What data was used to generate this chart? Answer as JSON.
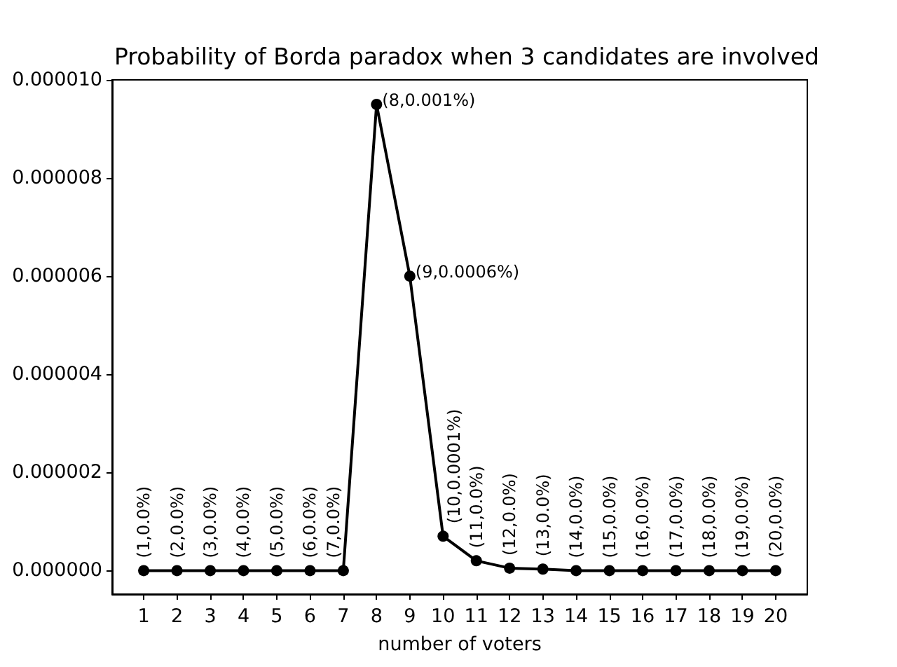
{
  "chart_data": {
    "type": "line",
    "title": "Probability of Borda paradox when 3 candidates are involved",
    "xlabel": "number of voters",
    "x": [
      1,
      2,
      3,
      4,
      5,
      6,
      7,
      8,
      9,
      10,
      11,
      12,
      13,
      14,
      15,
      16,
      17,
      18,
      19,
      20
    ],
    "values": [
      0,
      0,
      0,
      0,
      0,
      0,
      0,
      9.5e-06,
      6e-06,
      7e-07,
      2e-07,
      5e-08,
      3e-08,
      0,
      0,
      0,
      0,
      0,
      0,
      0
    ],
    "value_labels": [
      "(1,0.0%)",
      "(2,0.0%)",
      "(3,0.0%)",
      "(4,0.0%)",
      "(5,0.0%)",
      "(6,0.0%)",
      "(7,0.0%)",
      "(8,0.001%)",
      "(9,0.0006%)",
      "(10,0.0001%)",
      "(11,0.0%)",
      "(12,0.0%)",
      "(13,0.0%)",
      "(14,0.0%)",
      "(15,0.0%)",
      "(16,0.0%)",
      "(17,0.0%)",
      "(18,0.0%)",
      "(19,0.0%)",
      "(20,0.0%)"
    ],
    "color": "#000000",
    "xlim": [
      0.05,
      20.95
    ],
    "xticks": [
      1,
      2,
      3,
      4,
      5,
      6,
      7,
      8,
      9,
      10,
      11,
      12,
      13,
      14,
      15,
      16,
      17,
      18,
      19,
      20
    ],
    "ylim": [
      -4.8e-07,
      1e-05
    ],
    "yticks": [
      {
        "value": 0,
        "label": "0.000000"
      },
      {
        "value": 2e-06,
        "label": "0.000002"
      },
      {
        "value": 4e-06,
        "label": "0.000004"
      },
      {
        "value": 6e-06,
        "label": "0.000006"
      },
      {
        "value": 8e-06,
        "label": "0.000008"
      },
      {
        "value": 1e-05,
        "label": "0.000010"
      }
    ],
    "marker": "circle",
    "line_style": "solid"
  }
}
